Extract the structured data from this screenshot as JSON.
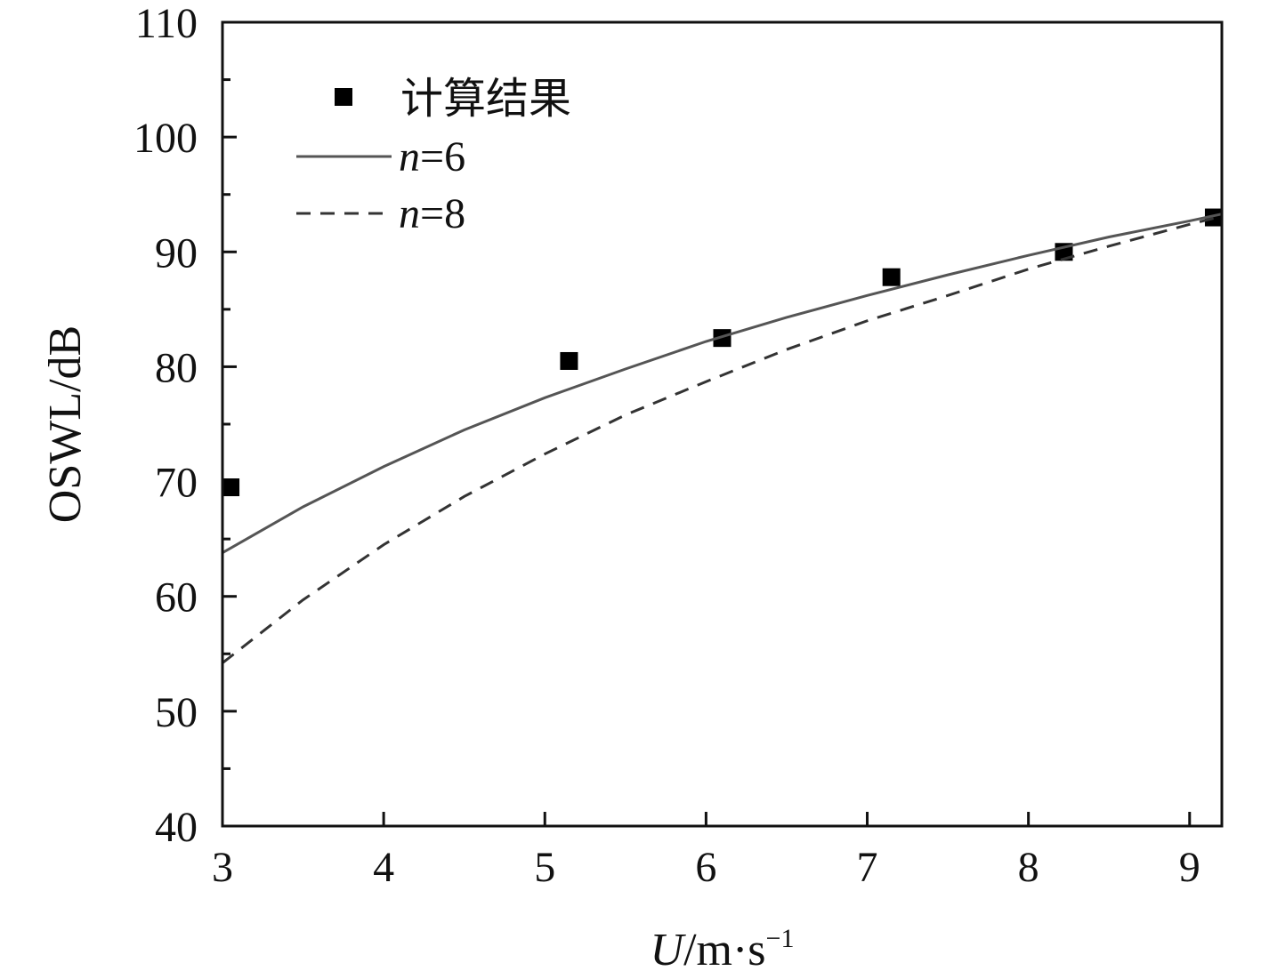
{
  "chart_data": {
    "type": "scatter",
    "xlabel": {
      "var": "U",
      "unit": "/m·s",
      "exp": "−1"
    },
    "ylabel": "OSWL/dB",
    "xlim": [
      3,
      9.2
    ],
    "ylim": [
      40,
      110
    ],
    "xticks": [
      "3",
      "4",
      "5",
      "6",
      "7",
      "8",
      "9"
    ],
    "yticks": [
      "40",
      "50",
      "60",
      "70",
      "80",
      "90",
      "100",
      "110"
    ],
    "legend_position": "top-left",
    "grid": false,
    "series": [
      {
        "name": "计算结果",
        "kind": "markers",
        "marker": "square",
        "color": "#000000",
        "x": [
          3.05,
          5.15,
          6.1,
          7.15,
          8.22,
          9.15
        ],
        "y": [
          69.5,
          80.5,
          82.5,
          87.8,
          90.0,
          93.0
        ]
      },
      {
        "name": "n=6",
        "name_var": "n",
        "name_rest": "=6",
        "kind": "line",
        "style": "solid",
        "color": "#555555",
        "x": [
          3.0,
          3.5,
          4.0,
          4.5,
          5.0,
          5.5,
          6.0,
          6.5,
          7.0,
          7.5,
          8.0,
          8.5,
          9.0,
          9.2
        ],
        "y": [
          63.8,
          67.8,
          71.3,
          74.5,
          77.3,
          79.8,
          82.2,
          84.3,
          86.2,
          88.0,
          89.7,
          91.3,
          92.7,
          93.3
        ]
      },
      {
        "name": "n=8",
        "name_var": "n",
        "name_rest": "=8",
        "kind": "line",
        "style": "dashed",
        "color": "#333333",
        "x": [
          3.0,
          3.5,
          4.0,
          4.5,
          5.0,
          5.5,
          6.0,
          6.5,
          7.0,
          7.5,
          8.0,
          8.5,
          9.0,
          9.2
        ],
        "y": [
          54.2,
          59.7,
          64.5,
          68.7,
          72.4,
          75.8,
          78.7,
          81.5,
          84.0,
          86.2,
          88.5,
          90.5,
          92.4,
          93.1
        ]
      }
    ]
  }
}
